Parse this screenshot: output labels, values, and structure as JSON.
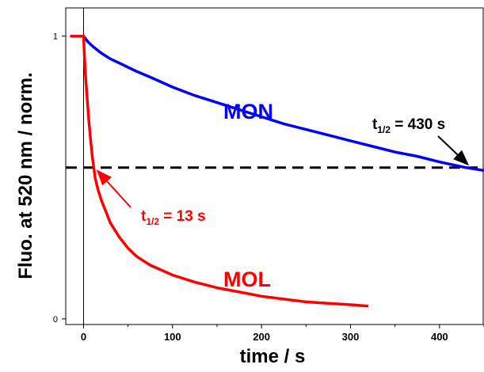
{
  "chart_data": {
    "type": "line",
    "xlabel": "time / s",
    "ylabel": "Fluo. at 520 nm / norm.",
    "xlim": [
      -20,
      450
    ],
    "ylim": [
      -0.02,
      1.1
    ],
    "x_ticks": [
      0,
      100,
      200,
      300,
      400
    ],
    "x_tick_labels": [
      "0",
      "100",
      "200",
      "300",
      "400"
    ],
    "y_ticks": [
      0,
      1
    ],
    "y_tick_labels": [
      "0",
      "1"
    ],
    "series": [
      {
        "name": "MON",
        "color": "#0000ff",
        "x": [
          -15,
          -10,
          -5,
          0,
          5,
          10,
          20,
          30,
          40,
          50,
          60,
          75,
          100,
          125,
          150,
          175,
          200,
          225,
          250,
          275,
          300,
          325,
          350,
          375,
          400,
          430,
          450
        ],
        "y": [
          1.0,
          1.0,
          1.0,
          1.0,
          0.98,
          0.965,
          0.94,
          0.92,
          0.905,
          0.89,
          0.875,
          0.855,
          0.82,
          0.79,
          0.765,
          0.74,
          0.715,
          0.69,
          0.67,
          0.65,
          0.63,
          0.61,
          0.59,
          0.575,
          0.555,
          0.535,
          0.525
        ]
      },
      {
        "name": "MOL",
        "color": "#ff0000",
        "x": [
          -15,
          -10,
          -5,
          0,
          1,
          2,
          4,
          6,
          8,
          10,
          13,
          16,
          20,
          25,
          30,
          40,
          50,
          60,
          75,
          100,
          125,
          150,
          175,
          200,
          225,
          250,
          275,
          300,
          320
        ],
        "y": [
          1.0,
          1.0,
          1.0,
          1.0,
          0.93,
          0.87,
          0.78,
          0.7,
          0.63,
          0.57,
          0.5,
          0.46,
          0.42,
          0.38,
          0.34,
          0.29,
          0.25,
          0.22,
          0.19,
          0.155,
          0.13,
          0.11,
          0.095,
          0.08,
          0.07,
          0.06,
          0.055,
          0.05,
          0.045
        ]
      }
    ],
    "reference_line": {
      "y": 0.535,
      "style": "dashed",
      "color": "#000000"
    }
  },
  "labels": {
    "mon": "MON",
    "mol": "MOL",
    "mon_half_prefix": "t",
    "mon_half_sub": "1/2",
    "mon_half_value": " = 430 s",
    "mol_half_prefix": "t",
    "mol_half_sub": "1/2",
    "mol_half_value": " = 13 s",
    "mon_half_x": 430,
    "mol_half_x": 13
  },
  "colors": {
    "mon": "#0000ff",
    "mol": "#ff0000",
    "axis": "#000000"
  }
}
